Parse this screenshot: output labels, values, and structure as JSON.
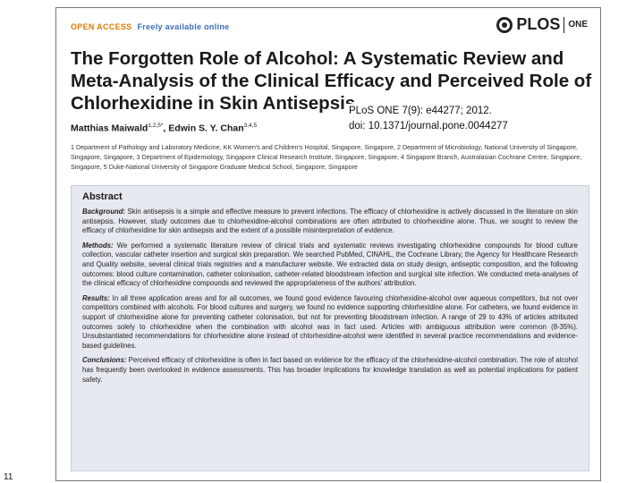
{
  "header": {
    "open_access": "OPEN ACCESS",
    "freely_available": "Freely available online",
    "publisher": "PLOS",
    "journal": "ONE"
  },
  "title": "The Forgotten Role of Alcohol: A Systematic Review and Meta-Analysis of the Clinical Efficacy and Perceived Role of Chlorhexidine in Skin Antisepsis",
  "authors": {
    "author1": "Matthias Maiwald",
    "author1_sup": "1,2,5*",
    "sep": ", ",
    "author2": "Edwin S. Y. Chan",
    "author2_sup": "3,4,5"
  },
  "citation": {
    "line1": "PLoS ONE 7(9): e44277; 2012.",
    "line2": "doi: 10.1371/journal.pone.0044277"
  },
  "affiliations": "1 Department of Pathology and Laboratory Medicine, KK Women's and Children's Hospital, Singapore, Singapore, 2 Department of Microbiology, National University of Singapore, Singapore, Singapore, 3 Department of Epidemiology, Singapore Clinical Research Institute, Singapore, Singapore, 4 Singapore Branch, Australasian Cochrane Centre, Singapore, Singapore, 5 Duke-National University of Singapore Graduate Medical School, Singapore, Singapore",
  "abstract": {
    "heading": "Abstract",
    "background_label": "Background:",
    "background": " Skin antisepsis is a simple and effective measure to prevent infections. The efficacy of chlorhexidine is actively discussed in the literature on skin antisepsis. However, study outcomes due to chlorhexidine-alcohol combinations are often attributed to chlorhexidine alone. Thus, we sought to review the efficacy of chlorhexidine for skin antisepsis and the extent of a possible misinterpretation of evidence.",
    "methods_label": "Methods:",
    "methods": " We performed a systematic literature review of clinical trials and systematic reviews investigating chlorhexidine compounds for blood culture collection, vascular catheter insertion and surgical skin preparation. We searched PubMed, CINAHL, the Cochrane Library, the Agency for Healthcare Research and Quality website, several clinical trials registries and a manufacturer website. We extracted data on study design, antiseptic composition, and the following outcomes: blood culture contamination, catheter colonisation, catheter-related bloodstream infection and surgical site infection. We conducted meta-analyses of the clinical efficacy of chlorhexidine compounds and reviewed the appropriateness of the authors' attribution.",
    "results_label": "Results:",
    "results": " In all three application areas and for all outcomes, we found good evidence favouring chlorhexidine-alcohol over aqueous competitors, but not over competitors combined with alcohols. For blood cultures and surgery, we found no evidence supporting chlorhexidine alone. For catheters, we found evidence in support of chlorhexidine alone for preventing catheter colonisation, but not for preventing bloodstream infection. A range of 29 to 43% of articles attributed outcomes solely to chlorhexidine when the combination with alcohol was in fact used. Articles with ambiguous attribution were common (8-35%). Unsubstantiated recommendations for chlorhexidine alone instead of chlorhexidine-alcohol were identified in several practice recommendations and evidence-based guidelines.",
    "conclusions_label": "Conclusions:",
    "conclusions": " Perceived efficacy of chlorhexidine is often in fact based on evidence for the efficacy of the chlorhexidine-alcohol combination. The role of alcohol has frequently been overlooked in evidence assessments. This has broader implications for knowledge translation as well as potential implications for patient safety."
  },
  "page_number": "11"
}
